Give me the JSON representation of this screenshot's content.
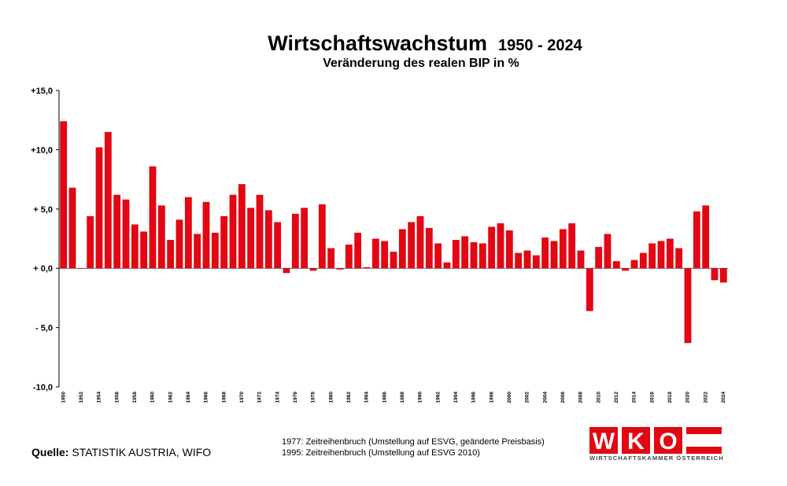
{
  "title": "Wirtschaftswachstum",
  "title_years": "1950 - 2024",
  "subtitle": "Veränderung des realen BIP in %",
  "source_label": "Quelle:",
  "source_text": "STATISTIK AUSTRIA, WIFO",
  "notes": [
    "1977: Zeitreihenbruch (Umstellung auf ESVG, geänderte Preisbasis)",
    "1995: Zeitreihenbruch (Umstellung auf ESVG 2010)"
  ],
  "logo": {
    "letters": [
      "W",
      "K",
      "O"
    ],
    "subtext": "WIRTSCHAFTSKAMMER ÖSTERREICH",
    "color": "#e30613"
  },
  "chart_data": {
    "type": "bar",
    "title": "Wirtschaftswachstum 1950 - 2024",
    "subtitle": "Veränderung des realen BIP in %",
    "bar_color": "#e30613",
    "ylim": [
      -10,
      15
    ],
    "y_ticks": [
      {
        "value": 15,
        "label": "+15,0"
      },
      {
        "value": 10,
        "label": "+10,0"
      },
      {
        "value": 5,
        "label": "+ 5,0"
      },
      {
        "value": 0,
        "label": "+ 0,0"
      },
      {
        "value": -5,
        "label": "- 5,0"
      },
      {
        "value": -10,
        "label": "-10,0"
      }
    ],
    "x_tick_years": [
      1950,
      1952,
      1954,
      1956,
      1958,
      1960,
      1962,
      1964,
      1966,
      1968,
      1970,
      1972,
      1974,
      1976,
      1978,
      1980,
      1982,
      1984,
      1986,
      1988,
      1990,
      1992,
      1994,
      1996,
      1998,
      2000,
      2002,
      2004,
      2006,
      2008,
      2010,
      2012,
      2014,
      2016,
      2018,
      2020,
      2022,
      2024
    ],
    "x": [
      1950,
      1951,
      1952,
      1953,
      1954,
      1955,
      1956,
      1957,
      1958,
      1959,
      1960,
      1961,
      1962,
      1963,
      1964,
      1965,
      1966,
      1967,
      1968,
      1969,
      1970,
      1971,
      1972,
      1973,
      1974,
      1975,
      1976,
      1977,
      1978,
      1979,
      1980,
      1981,
      1982,
      1983,
      1984,
      1985,
      1986,
      1987,
      1988,
      1989,
      1990,
      1991,
      1992,
      1993,
      1994,
      1995,
      1996,
      1997,
      1998,
      1999,
      2000,
      2001,
      2002,
      2003,
      2004,
      2005,
      2006,
      2007,
      2008,
      2009,
      2010,
      2011,
      2012,
      2013,
      2014,
      2015,
      2016,
      2017,
      2018,
      2019,
      2020,
      2021,
      2022,
      2023,
      2024
    ],
    "values": [
      12.4,
      6.8,
      0.0,
      4.4,
      10.2,
      11.5,
      6.2,
      5.8,
      3.7,
      3.1,
      8.6,
      5.3,
      2.4,
      4.1,
      6.0,
      2.9,
      5.6,
      3.0,
      4.4,
      6.2,
      7.1,
      5.1,
      6.2,
      4.9,
      3.9,
      -0.4,
      4.6,
      5.1,
      -0.2,
      5.4,
      1.7,
      -0.1,
      2.0,
      3.0,
      0.1,
      2.5,
      2.3,
      1.4,
      3.3,
      3.9,
      4.4,
      3.4,
      2.1,
      0.5,
      2.4,
      2.7,
      2.2,
      2.1,
      3.5,
      3.8,
      3.2,
      1.3,
      1.5,
      1.1,
      2.6,
      2.3,
      3.3,
      3.8,
      1.5,
      -3.6,
      1.8,
      2.9,
      0.6,
      -0.2,
      0.7,
      1.3,
      2.1,
      2.3,
      2.5,
      1.7,
      -6.3,
      4.8,
      5.3,
      -1.0,
      -1.2
    ]
  }
}
